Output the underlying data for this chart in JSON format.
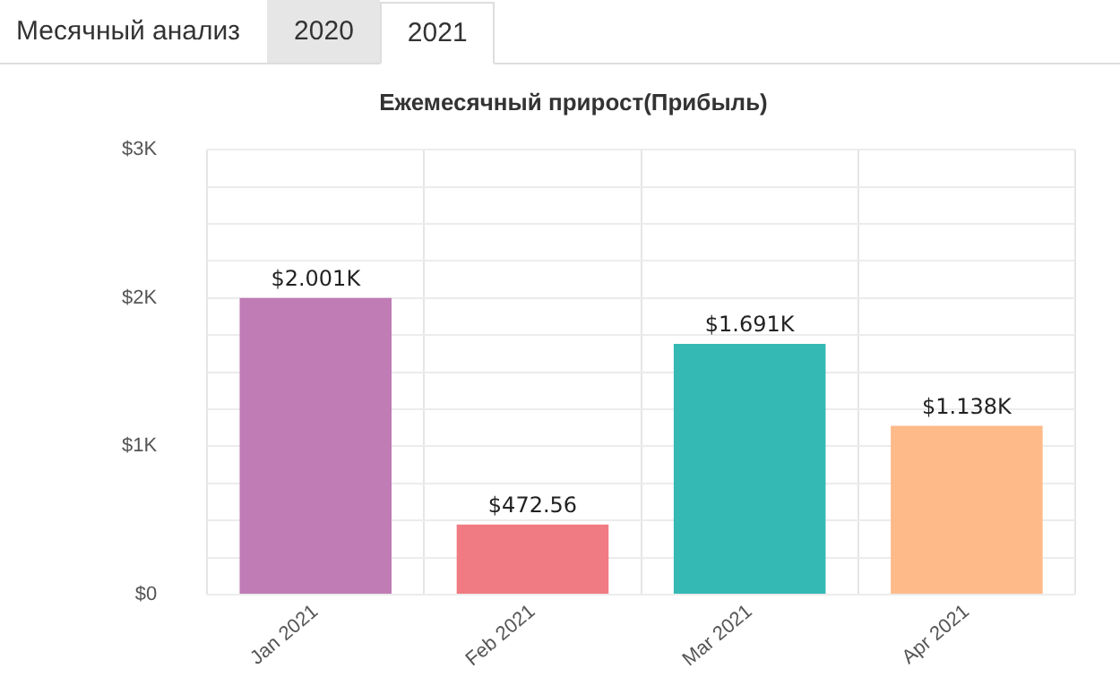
{
  "chart_data": {
    "type": "bar",
    "title": "Ежемесячный прирост(Прибыль)",
    "annotations": [
      "Месячный анализ",
      "2020",
      "2021"
    ],
    "categories": [
      "Jan 2021",
      "Feb 2021",
      "Mar 2021",
      "Apr 2021"
    ],
    "values": [
      2001,
      472.56,
      1691,
      1138
    ],
    "value_labels": [
      "$2.001K",
      "$472.56",
      "$1.691K",
      "$1.138K"
    ],
    "colors": [
      "#bf7cb5",
      "#f07b82",
      "#35b9b5",
      "#ffba8a"
    ],
    "ylim": [
      0,
      3000
    ],
    "yticks": [
      {
        "value": 0,
        "label": "$0"
      },
      {
        "value": 250,
        "label": null
      },
      {
        "value": 500,
        "label": null
      },
      {
        "value": 750,
        "label": null
      },
      {
        "value": 1000,
        "label": "$1K"
      },
      {
        "value": 1250,
        "label": null
      },
      {
        "value": 1500,
        "label": null
      },
      {
        "value": 1750,
        "label": null
      },
      {
        "value": 2000,
        "label": "$2K"
      },
      {
        "value": 2250,
        "label": null
      },
      {
        "value": 2500,
        "label": null
      },
      {
        "value": 2750,
        "label": null
      },
      {
        "value": 3000,
        "label": "$3K"
      }
    ],
    "grid": true,
    "legend": false
  }
}
